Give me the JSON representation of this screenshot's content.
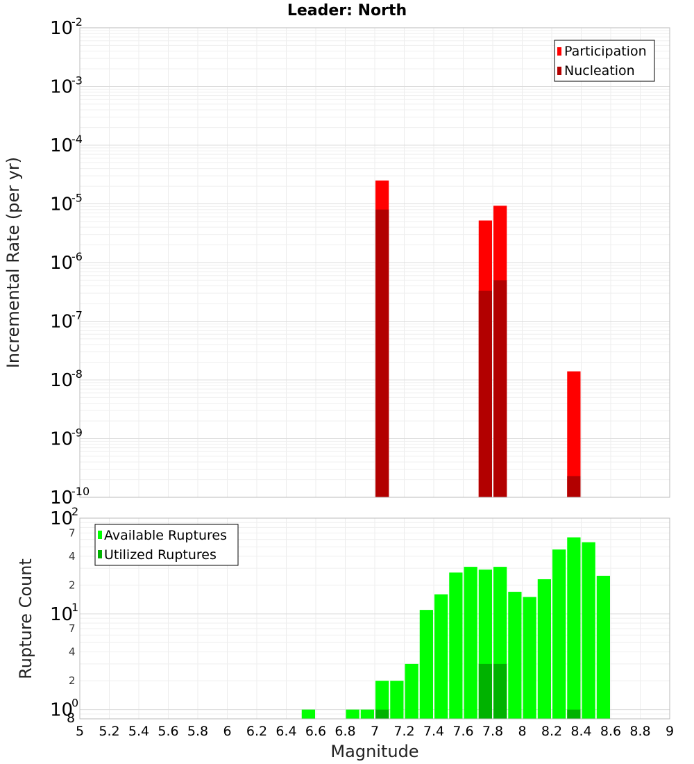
{
  "chart_data": [
    {
      "type": "bar",
      "title": "Leader: North",
      "xlabel": "",
      "ylabel": "Incremental Rate (per yr)",
      "yscale": "log",
      "xlim": [
        5,
        9
      ],
      "ylim": [
        1e-10,
        0.01
      ],
      "y_tick_labels": [
        {
          "base": "10",
          "exp": "-10"
        },
        {
          "base": "10",
          "exp": "-9"
        },
        {
          "base": "10",
          "exp": "-8"
        },
        {
          "base": "10",
          "exp": "-7"
        },
        {
          "base": "10",
          "exp": "-6"
        },
        {
          "base": "10",
          "exp": "-5"
        },
        {
          "base": "10",
          "exp": "-4"
        },
        {
          "base": "10",
          "exp": "-3"
        },
        {
          "base": "10",
          "exp": "-2"
        }
      ],
      "grid": true,
      "legend_position": "top-right",
      "bin_width": 0.1,
      "series": [
        {
          "name": "Participation",
          "color": "#ff0000",
          "x": [
            7.05,
            7.75,
            7.85,
            8.35
          ],
          "values": [
            2.5e-05,
            5.2e-06,
            9.3e-06,
            1.4e-08
          ]
        },
        {
          "name": "Nucleation",
          "color": "#b20000",
          "x": [
            7.05,
            7.75,
            7.85,
            8.35
          ],
          "values": [
            8e-06,
            3.3e-07,
            5e-07,
            2.3e-10
          ]
        }
      ]
    },
    {
      "type": "bar",
      "title": "",
      "xlabel": "Magnitude",
      "ylabel": "Rupture Count",
      "yscale": "log",
      "xlim": [
        5,
        9
      ],
      "ylim": [
        0.8,
        100
      ],
      "x_ticks": [
        "5",
        "5.2",
        "5.4",
        "5.6",
        "5.8",
        "6",
        "6.2",
        "6.4",
        "6.6",
        "6.8",
        "7",
        "7.2",
        "7.4",
        "7.6",
        "7.8",
        "8",
        "8.2",
        "8.4",
        "8.6",
        "8.8",
        "9"
      ],
      "y_major_ticks": [
        {
          "base": "10",
          "exp": "0",
          "value": 1
        },
        {
          "base": "10",
          "exp": "1",
          "value": 10
        },
        {
          "base": "10",
          "exp": "2",
          "value": 100
        }
      ],
      "y_minor_ticks": [
        {
          "label": "8",
          "value": 0.8
        },
        {
          "label": "2",
          "value": 2
        },
        {
          "label": "4",
          "value": 4
        },
        {
          "label": "7",
          "value": 7
        },
        {
          "label": "2",
          "value": 20
        },
        {
          "label": "4",
          "value": 40
        },
        {
          "label": "7",
          "value": 70
        }
      ],
      "grid": true,
      "legend_position": "top-left",
      "bin_width": 0.1,
      "series": [
        {
          "name": "Available Ruptures",
          "color": "#00ff00",
          "x": [
            6.55,
            6.85,
            6.95,
            7.05,
            7.15,
            7.25,
            7.35,
            7.45,
            7.55,
            7.65,
            7.75,
            7.85,
            7.95,
            8.05,
            8.15,
            8.25,
            8.35,
            8.45,
            8.55
          ],
          "values": [
            1,
            1,
            1,
            2,
            2,
            3,
            11,
            16,
            27,
            31,
            29,
            31,
            17,
            15,
            23,
            47,
            63,
            56,
            25
          ]
        },
        {
          "name": "Utilized Ruptures",
          "color": "#00b200",
          "x": [
            7.05,
            7.75,
            7.85,
            8.35
          ],
          "values": [
            1,
            3,
            3,
            1
          ]
        }
      ]
    }
  ]
}
